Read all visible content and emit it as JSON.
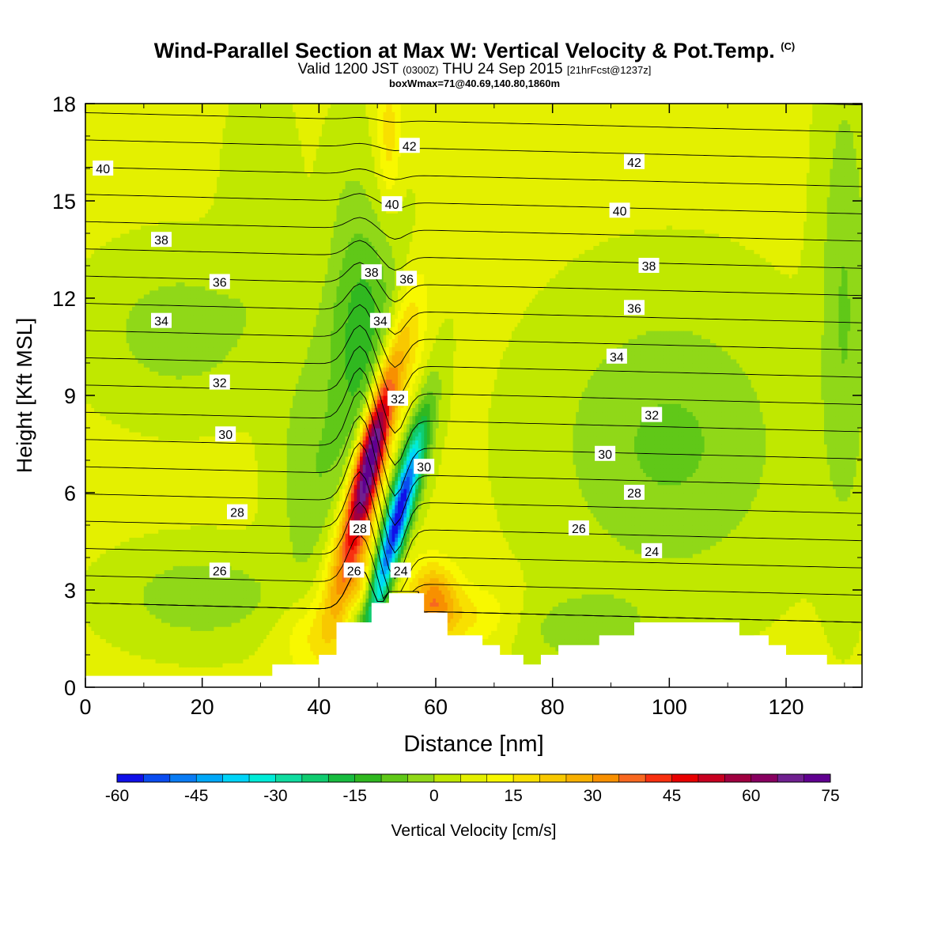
{
  "title": {
    "main": "Wind-Parallel Section at Max W: Vertical Velocity & Pot.Temp.",
    "copyright": "(C)",
    "valid_prefix": "Valid 1200 JST",
    "valid_utc": "(0300Z)",
    "valid_date": "THU 24 Sep 2015",
    "forecast": "[21hrFcst@1237z]",
    "box": "boxWmax=71@40.69,140.80,1860m"
  },
  "chart_data": {
    "type": "heatmap",
    "xlabel": "Distance [nm]",
    "ylabel": "Height [Kft MSL]",
    "xlim": [
      0,
      133
    ],
    "ylim": [
      0,
      18
    ],
    "x_ticks": [
      "0",
      "20",
      "40",
      "60",
      "80",
      "100",
      "120"
    ],
    "y_ticks": [
      "0",
      "3",
      "6",
      "9",
      "12",
      "15",
      "18"
    ],
    "colorbar": {
      "label": "Vertical Velocity [cm/s]",
      "min": -60,
      "max": 75,
      "step": 5,
      "tick_labels": [
        "-60",
        "-45",
        "-30",
        "-15",
        "0",
        "15",
        "30",
        "45",
        "60",
        "75"
      ],
      "colors": [
        "#1010e8",
        "#0a4cf0",
        "#0a7cf4",
        "#00a8f8",
        "#00d4f8",
        "#00ecd8",
        "#10dca0",
        "#10cc70",
        "#18bc40",
        "#30b820",
        "#60c818",
        "#90d818",
        "#c0e800",
        "#e4f000",
        "#f8f800",
        "#f8e000",
        "#f8c800",
        "#f8b000",
        "#f89000",
        "#f86820",
        "#f83010",
        "#e80000",
        "#c80020",
        "#a00040",
        "#880060",
        "#702090",
        "#600090"
      ]
    },
    "terrain_nm_kft": [
      [
        0,
        0.35
      ],
      [
        32,
        0.35
      ],
      [
        32,
        0.7
      ],
      [
        40,
        0.7
      ],
      [
        40,
        1
      ],
      [
        43,
        1
      ],
      [
        43,
        2
      ],
      [
        49,
        2
      ],
      [
        49,
        2.6
      ],
      [
        52,
        2.6
      ],
      [
        52,
        2.9
      ],
      [
        58,
        2.9
      ],
      [
        58,
        2.3
      ],
      [
        62,
        2.3
      ],
      [
        62,
        1.6
      ],
      [
        68,
        1.6
      ],
      [
        68,
        1.3
      ],
      [
        71,
        1.3
      ],
      [
        71,
        1
      ],
      [
        75,
        1
      ],
      [
        75,
        0.7
      ],
      [
        78,
        0.7
      ],
      [
        78,
        1
      ],
      [
        81,
        1
      ],
      [
        81,
        1.3
      ],
      [
        88,
        1.3
      ],
      [
        88,
        1.6
      ],
      [
        94,
        1.6
      ],
      [
        94,
        2
      ],
      [
        112,
        2
      ],
      [
        112,
        1.6
      ],
      [
        117,
        1.6
      ],
      [
        117,
        1.3
      ],
      [
        120,
        1.3
      ],
      [
        120,
        1
      ],
      [
        127,
        1
      ],
      [
        127,
        0.7
      ],
      [
        133,
        0.7
      ]
    ],
    "potential_temperature_isotherms_C": [
      24,
      26,
      28,
      30,
      32,
      34,
      36,
      38,
      40,
      42
    ],
    "max_w_cm_s": 71,
    "max_w_location": "40.69,140.80",
    "max_w_height": "1860m"
  },
  "isotherm_labels": [
    {
      "text": "42",
      "x": 55.5,
      "y": 16.7
    },
    {
      "text": "42",
      "x": 94,
      "y": 16.2
    },
    {
      "text": "40",
      "x": 3,
      "y": 16
    },
    {
      "text": "40",
      "x": 52.5,
      "y": 14.9
    },
    {
      "text": "40",
      "x": 91.5,
      "y": 14.7
    },
    {
      "text": "38",
      "x": 13,
      "y": 13.8
    },
    {
      "text": "38",
      "x": 49,
      "y": 12.8
    },
    {
      "text": "38",
      "x": 96.5,
      "y": 13
    },
    {
      "text": "36",
      "x": 23,
      "y": 12.5
    },
    {
      "text": "36",
      "x": 55,
      "y": 12.6
    },
    {
      "text": "36",
      "x": 94,
      "y": 11.7
    },
    {
      "text": "34",
      "x": 13,
      "y": 11.3
    },
    {
      "text": "34",
      "x": 50.5,
      "y": 11.3
    },
    {
      "text": "34",
      "x": 91,
      "y": 10.2
    },
    {
      "text": "32",
      "x": 23,
      "y": 9.4
    },
    {
      "text": "32",
      "x": 53.5,
      "y": 8.9
    },
    {
      "text": "32",
      "x": 97,
      "y": 8.4
    },
    {
      "text": "30",
      "x": 24,
      "y": 7.8
    },
    {
      "text": "30",
      "x": 58,
      "y": 6.8
    },
    {
      "text": "30",
      "x": 89,
      "y": 7.2
    },
    {
      "text": "28",
      "x": 26,
      "y": 5.4
    },
    {
      "text": "28",
      "x": 47,
      "y": 4.9
    },
    {
      "text": "28",
      "x": 94,
      "y": 6
    },
    {
      "text": "26",
      "x": 23,
      "y": 3.6
    },
    {
      "text": "26",
      "x": 46,
      "y": 3.6
    },
    {
      "text": "26",
      "x": 84.5,
      "y": 4.9
    },
    {
      "text": "24",
      "x": 54,
      "y": 3.6
    },
    {
      "text": "24",
      "x": 97,
      "y": 4.2
    }
  ]
}
